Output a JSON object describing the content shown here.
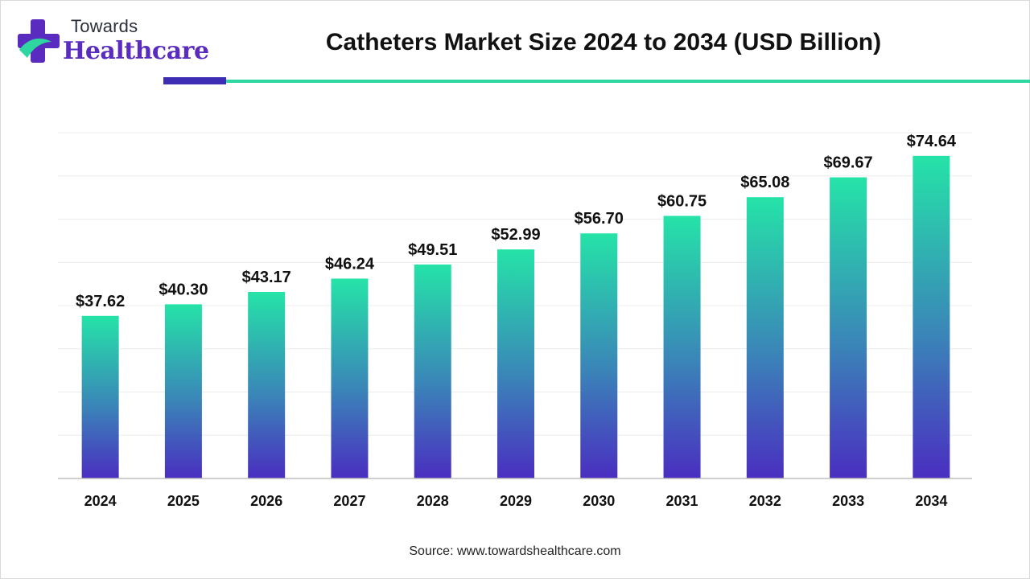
{
  "brand": {
    "line1": "Towards",
    "line2": "Healthcare",
    "icon": "medical-cross-icon"
  },
  "title": "Catheters Market Size 2024 to 2034 (USD Billion)",
  "source": "Source: www.towardshealthcare.com",
  "colors": {
    "bar_top": "#25e3a8",
    "bar_mid": "#3a86b8",
    "bar_bottom": "#4a2ec0",
    "accent_purple": "#3d2db5",
    "accent_green": "#2ed6a0"
  },
  "chart_data": {
    "type": "bar",
    "categories": [
      "2024",
      "2025",
      "2026",
      "2027",
      "2028",
      "2029",
      "2030",
      "2031",
      "2032",
      "2033",
      "2034"
    ],
    "values": [
      37.62,
      40.3,
      43.17,
      46.24,
      49.51,
      52.99,
      56.7,
      60.75,
      65.08,
      69.67,
      74.64
    ],
    "data_labels": [
      "$37.62",
      "$40.30",
      "$43.17",
      "$46.24",
      "$49.51",
      "$52.99",
      "$56.70",
      "$60.75",
      "$65.08",
      "$69.67",
      "$74.64"
    ],
    "title": "Catheters Market Size 2024 to 2034 (USD Billion)",
    "xlabel": "",
    "ylabel": "",
    "ylim": [
      0,
      80
    ],
    "grid": true,
    "legend": "none"
  }
}
